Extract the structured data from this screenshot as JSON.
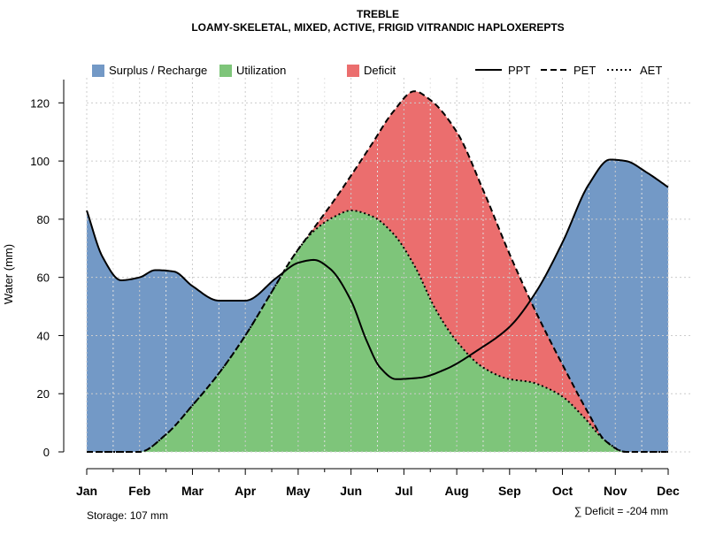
{
  "chart_data": {
    "type": "area",
    "title": "TREBLE",
    "subtitle": "LOAMY-SKELETAL, MIXED, ACTIVE, FRIGID VITRANDIC HAPLOXEREPTS",
    "ylabel": "Water (mm)",
    "xlabel": "",
    "ylim": [
      0,
      128
    ],
    "yticks": [
      0,
      20,
      40,
      60,
      80,
      100,
      120
    ],
    "categories": [
      "Jan",
      "Feb",
      "Mar",
      "Apr",
      "May",
      "Jun",
      "Jul",
      "Aug",
      "Sep",
      "Oct",
      "Nov",
      "Dec"
    ],
    "grid": true,
    "legend_position": "top",
    "legend": {
      "areas": [
        "Surplus / Recharge",
        "Utilization",
        "Deficit"
      ],
      "lines": [
        "PPT",
        "PET",
        "AET"
      ]
    },
    "series": [
      {
        "name": "PPT",
        "style": "solid",
        "values": [
          [
            1,
            83
          ],
          [
            1.3,
            67
          ],
          [
            1.65,
            59
          ],
          [
            2,
            60
          ],
          [
            2.3,
            62.5
          ],
          [
            2.65,
            62
          ],
          [
            3,
            57
          ],
          [
            3.5,
            52
          ],
          [
            4,
            52
          ],
          [
            4.6,
            60
          ],
          [
            5,
            65
          ],
          [
            5.3,
            66
          ],
          [
            5.6,
            63
          ],
          [
            6,
            52
          ],
          [
            6.3,
            38
          ],
          [
            6.55,
            29
          ],
          [
            6.85,
            25
          ],
          [
            7.3,
            25.5
          ],
          [
            7.8,
            28.5
          ],
          [
            8.4,
            35
          ],
          [
            9,
            43
          ],
          [
            9.5,
            55
          ],
          [
            10,
            72
          ],
          [
            10.5,
            92
          ],
          [
            10.9,
            100.5
          ],
          [
            11.2,
            100
          ],
          [
            11.6,
            96
          ],
          [
            12,
            91
          ]
        ]
      },
      {
        "name": "PET",
        "style": "dashed",
        "values": [
          [
            1,
            0
          ],
          [
            1.5,
            0
          ],
          [
            2,
            0
          ],
          [
            2.5,
            6
          ],
          [
            3,
            16
          ],
          [
            3.5,
            27
          ],
          [
            4,
            40
          ],
          [
            4.5,
            55
          ],
          [
            4.9,
            67
          ],
          [
            5.3,
            77
          ],
          [
            5.7,
            87
          ],
          [
            6,
            95
          ],
          [
            6.4,
            106
          ],
          [
            6.8,
            117
          ],
          [
            7.2,
            124
          ],
          [
            7.5,
            121
          ],
          [
            8,
            110
          ],
          [
            8.5,
            90
          ],
          [
            9,
            68
          ],
          [
            9.5,
            48
          ],
          [
            10,
            30
          ],
          [
            10.5,
            13
          ],
          [
            10.8,
            4
          ],
          [
            11.2,
            0
          ],
          [
            12,
            0
          ]
        ]
      },
      {
        "name": "AET",
        "style": "dotted",
        "values": [
          [
            1,
            0
          ],
          [
            1.5,
            0
          ],
          [
            2,
            0
          ],
          [
            2.5,
            6
          ],
          [
            3,
            16
          ],
          [
            3.5,
            27
          ],
          [
            4,
            40
          ],
          [
            4.5,
            55
          ],
          [
            4.9,
            67
          ],
          [
            5.3,
            76
          ],
          [
            5.7,
            81
          ],
          [
            6,
            83
          ],
          [
            6.4,
            81
          ],
          [
            6.8,
            75
          ],
          [
            7.2,
            64
          ],
          [
            7.6,
            49
          ],
          [
            8,
            38
          ],
          [
            8.5,
            29
          ],
          [
            9,
            25
          ],
          [
            9.4,
            24
          ],
          [
            9.7,
            22
          ],
          [
            10,
            19
          ],
          [
            10.4,
            12
          ],
          [
            10.8,
            4
          ],
          [
            11.2,
            0
          ],
          [
            12,
            0
          ]
        ]
      }
    ],
    "annotations": {
      "storage": "Storage: 107 mm",
      "deficit": "∑ Deficit = -204 mm"
    }
  },
  "colors": {
    "surplus": "#7399c6",
    "utilization": "#7ec57a",
    "deficit": "#eb6e6e",
    "line": "#000000",
    "grid": "#cccccc"
  }
}
